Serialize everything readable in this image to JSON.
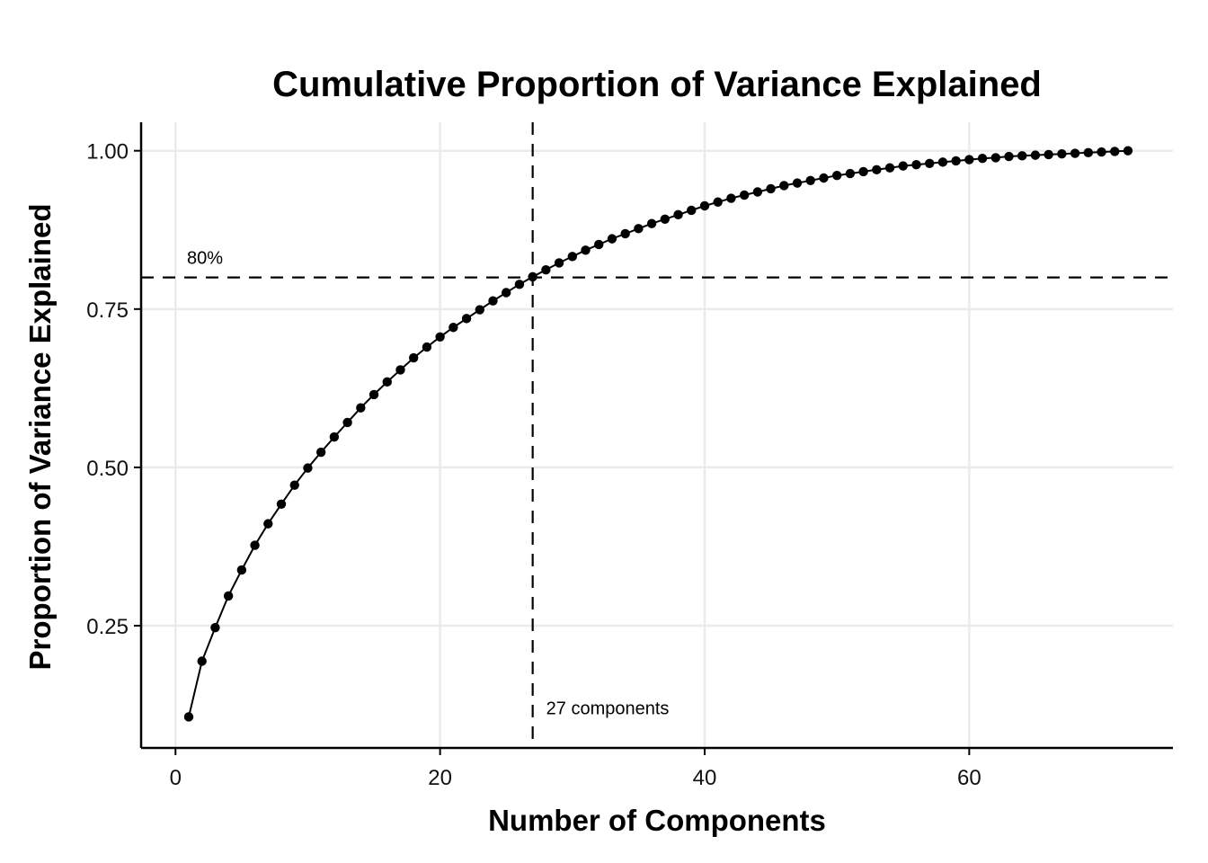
{
  "chart_data": {
    "type": "line",
    "title": "Cumulative Proportion of Variance Explained",
    "xlabel": "Number of Components",
    "ylabel": "Proportion of Variance Explained",
    "xlim": [
      -2.6,
      75.4
    ],
    "ylim": [
      0.057,
      1.045
    ],
    "x_ticks": [
      0,
      20,
      40,
      60
    ],
    "x_tick_labels": [
      "0",
      "20",
      "40",
      "60"
    ],
    "y_ticks": [
      0.25,
      0.5,
      0.75,
      1.0
    ],
    "y_tick_labels": [
      "0.25",
      "0.50",
      "0.75",
      "1.00"
    ],
    "grid": true,
    "series": [
      {
        "x": [
          1,
          2,
          3,
          4,
          5,
          6,
          7,
          8,
          9,
          10,
          11,
          12,
          13,
          14,
          15,
          16,
          17,
          18,
          19,
          20,
          21,
          22,
          23,
          24,
          25,
          26,
          27,
          28,
          29,
          30,
          31,
          32,
          33,
          34,
          35,
          36,
          37,
          38,
          39,
          40,
          41,
          42,
          43,
          44,
          45,
          46,
          47,
          48,
          49,
          50,
          51,
          52,
          53,
          54,
          55,
          56,
          57,
          58,
          59,
          60,
          61,
          62,
          63,
          64,
          65,
          66,
          67,
          68,
          69,
          70,
          71,
          72
        ],
        "values": [
          0.106,
          0.194,
          0.247,
          0.297,
          0.338,
          0.377,
          0.411,
          0.442,
          0.472,
          0.499,
          0.524,
          0.548,
          0.571,
          0.594,
          0.615,
          0.635,
          0.654,
          0.673,
          0.69,
          0.706,
          0.721,
          0.735,
          0.749,
          0.763,
          0.776,
          0.789,
          0.801,
          0.812,
          0.823,
          0.833,
          0.843,
          0.852,
          0.861,
          0.869,
          0.877,
          0.885,
          0.892,
          0.899,
          0.906,
          0.913,
          0.919,
          0.925,
          0.93,
          0.935,
          0.94,
          0.945,
          0.949,
          0.953,
          0.957,
          0.961,
          0.964,
          0.967,
          0.97,
          0.973,
          0.976,
          0.978,
          0.98,
          0.982,
          0.984,
          0.986,
          0.988,
          0.989,
          0.991,
          0.992,
          0.993,
          0.994,
          0.995,
          0.996,
          0.997,
          0.998,
          0.999,
          1.0
        ]
      }
    ],
    "reference_lines": [
      {
        "orientation": "horizontal",
        "value": 0.8,
        "label": "80%"
      },
      {
        "orientation": "vertical",
        "value": 27,
        "label": "27 components"
      }
    ]
  }
}
